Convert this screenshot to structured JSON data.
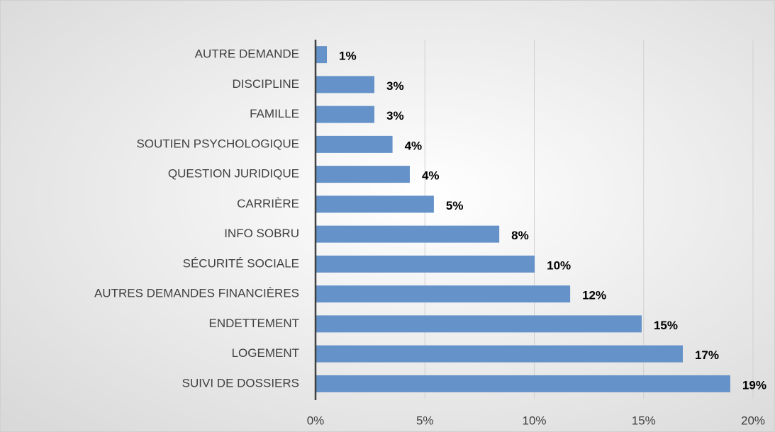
{
  "chart_data": {
    "type": "bar",
    "orientation": "horizontal",
    "categories": [
      "AUTRE DEMANDE",
      "DISCIPLINE",
      "FAMILLE",
      "SOUTIEN PSYCHOLOGIQUE",
      "QUESTION JURIDIQUE",
      "CARRIÈRE",
      "INFO SOBRU",
      "SÉCURITÉ SOCIALE",
      "AUTRES DEMANDES FINANCIÈRES",
      "ENDETTEMENT",
      "LOGEMENT",
      "SUIVI DE DOSSIERS"
    ],
    "values": [
      0.52,
      2.69,
      2.69,
      3.52,
      4.31,
      5.41,
      8.4,
      10.02,
      11.64,
      14.91,
      16.79,
      18.96
    ],
    "value_labels": [
      "1%",
      "3%",
      "3%",
      "4%",
      "4%",
      "5%",
      "8%",
      "10%",
      "12%",
      "15%",
      "17%",
      "19%"
    ],
    "color": "#6592c8",
    "xlim": [
      0,
      20
    ],
    "xticks": [
      {
        "value": 0,
        "label": "0%"
      },
      {
        "value": 5,
        "label": "5%"
      },
      {
        "value": 10,
        "label": "10%"
      },
      {
        "value": 15,
        "label": "15%"
      },
      {
        "value": 20,
        "label": "20%"
      }
    ],
    "grid": true
  }
}
